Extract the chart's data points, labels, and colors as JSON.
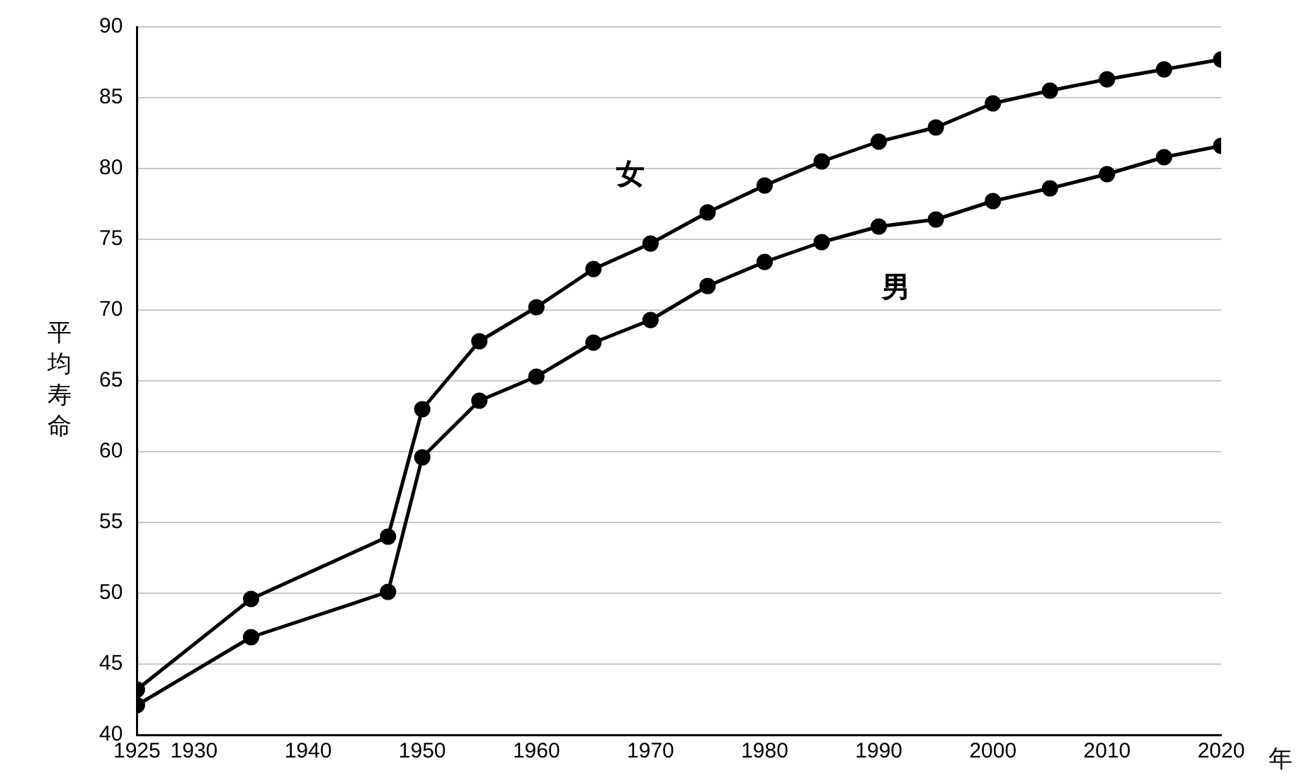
{
  "chart_data": {
    "type": "line",
    "xlabel": "年",
    "ylabel": "平均寿命",
    "x": [
      1925,
      1935,
      1947,
      1950,
      1955,
      1960,
      1965,
      1970,
      1975,
      1980,
      1985,
      1990,
      1995,
      2000,
      2005,
      2010,
      2015,
      2020
    ],
    "series": [
      {
        "name": "女",
        "color": "#000000",
        "values": [
          43.2,
          49.6,
          54.0,
          63.0,
          67.8,
          70.2,
          72.9,
          74.7,
          76.9,
          78.8,
          80.5,
          81.9,
          82.9,
          84.6,
          85.5,
          86.3,
          87.0,
          87.7
        ]
      },
      {
        "name": "男",
        "color": "#000000",
        "values": [
          42.1,
          46.9,
          50.1,
          59.6,
          63.6,
          65.3,
          67.7,
          69.3,
          71.7,
          73.4,
          74.8,
          75.9,
          76.4,
          77.7,
          78.6,
          79.6,
          80.8,
          81.6
        ]
      }
    ],
    "xlim": [
      1925,
      2020
    ],
    "xticks": [
      1925,
      1930,
      1940,
      1950,
      1960,
      1970,
      1980,
      1990,
      2000,
      2010,
      2020
    ],
    "ylim": [
      40,
      90
    ],
    "yticks": [
      40,
      45,
      50,
      55,
      60,
      65,
      70,
      75,
      80,
      85,
      90
    ],
    "grid": "y",
    "legend": false,
    "marker": "circle",
    "line_style": "solid"
  }
}
